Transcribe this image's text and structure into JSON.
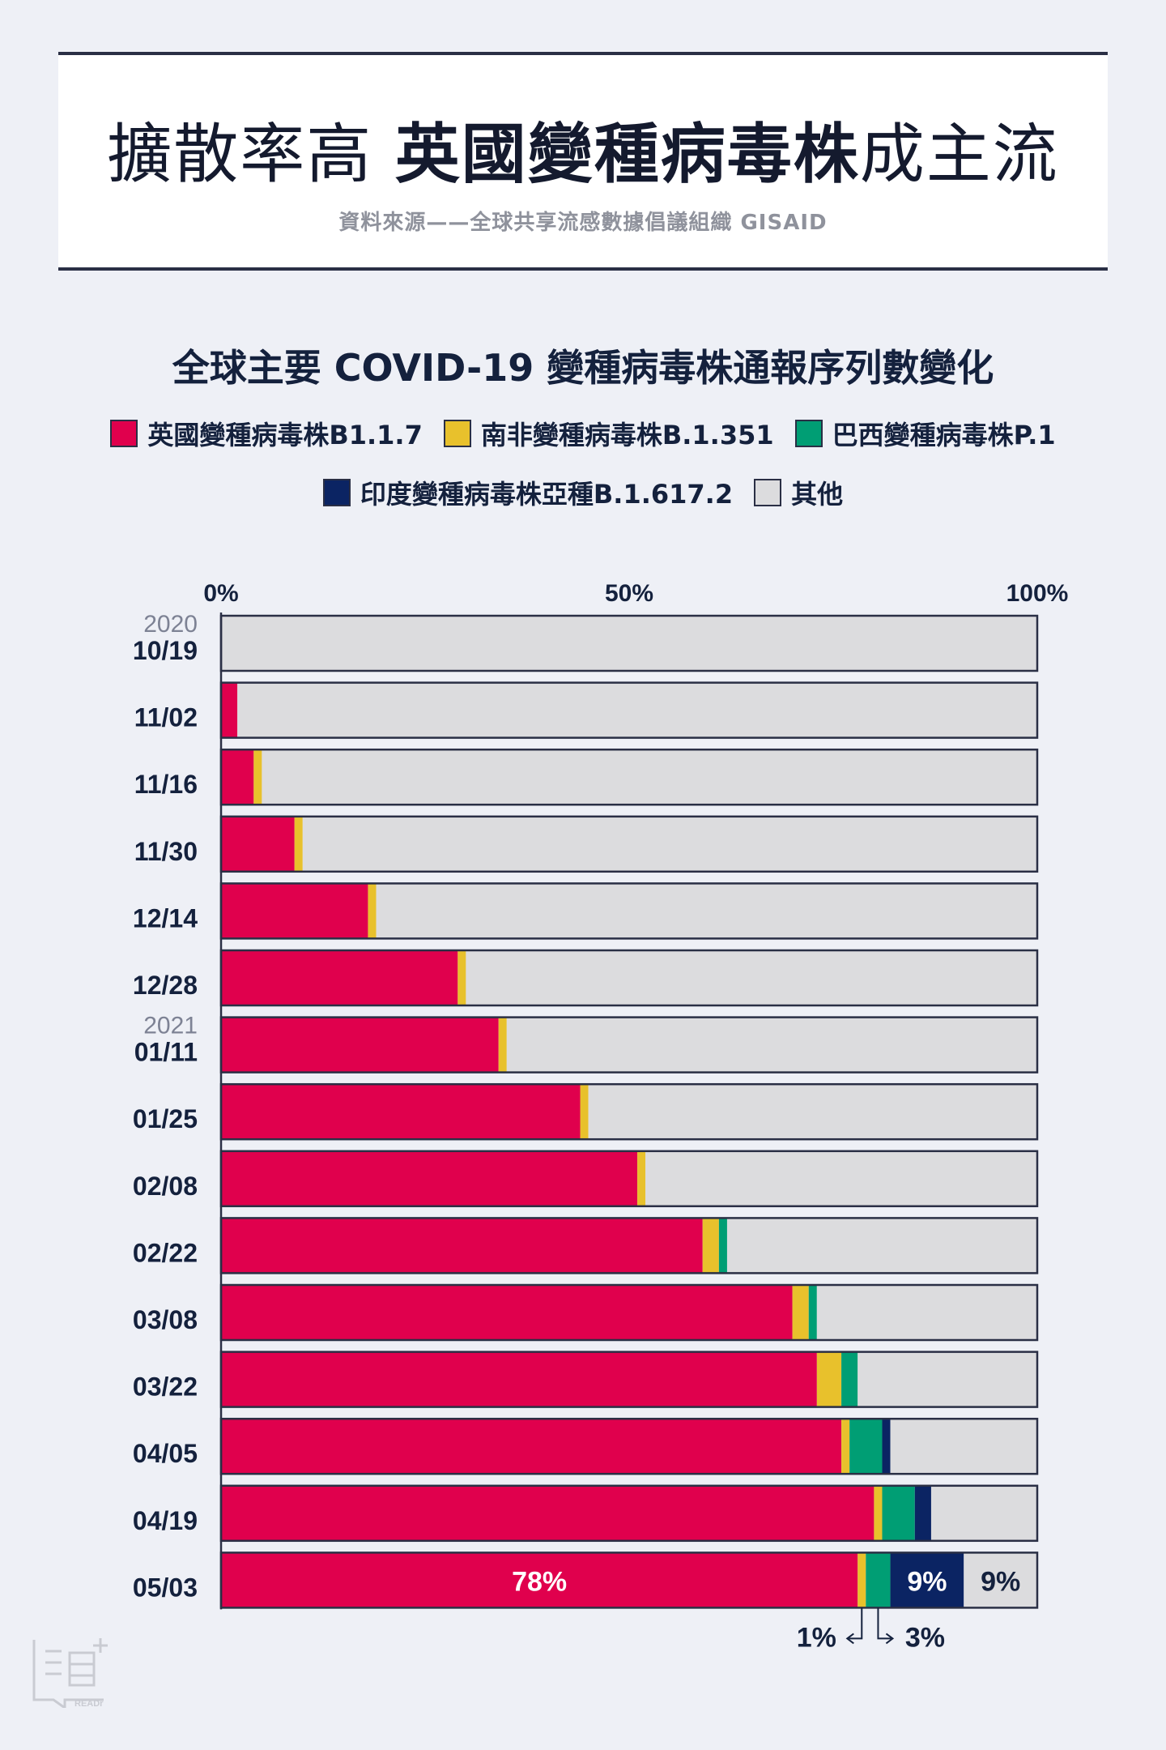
{
  "header": {
    "title_light_1": "擴散率高 ",
    "title_bold": "英國變種病毒株",
    "title_light_2": "成主流",
    "source": "資料來源——全球共享流感數據倡議組織 GISAID"
  },
  "chart_data": {
    "type": "bar",
    "orientation": "horizontal",
    "stacked": true,
    "normalized": true,
    "title": "全球主要 COVID-19 變種病毒株通報序列數變化",
    "xlim": [
      0,
      100
    ],
    "x_ticks": [
      "0%",
      "50%",
      "100%"
    ],
    "legend_position": "top",
    "categories": [
      "10/19",
      "11/02",
      "11/16",
      "11/30",
      "12/14",
      "12/28",
      "01/11",
      "01/25",
      "02/08",
      "02/22",
      "03/08",
      "03/22",
      "04/05",
      "04/19",
      "05/03"
    ],
    "year_labels": {
      "10/19": "2020",
      "01/11": "2021"
    },
    "series": [
      {
        "name": "英國變種病毒株B1.1.7",
        "color": "#e0004d",
        "values": [
          0,
          2,
          4,
          9,
          18,
          29,
          34,
          44,
          51,
          59,
          70,
          73,
          76,
          80,
          78
        ]
      },
      {
        "name": "南非變種病毒株B.1.351",
        "color": "#e8c12c",
        "values": [
          0,
          0,
          1,
          1,
          1,
          1,
          1,
          1,
          1,
          2,
          2,
          3,
          1,
          1,
          1
        ]
      },
      {
        "name": "巴西變種病毒株P.1",
        "color": "#009e74",
        "values": [
          0,
          0,
          0,
          0,
          0,
          0,
          0,
          0,
          0,
          1,
          1,
          2,
          4,
          4,
          3
        ]
      },
      {
        "name": "印度變種病毒株亞種B.1.617.2",
        "color": "#0b2463",
        "values": [
          0,
          0,
          0,
          0,
          0,
          0,
          0,
          0,
          0,
          0,
          0,
          0,
          1,
          2,
          9
        ]
      },
      {
        "name": "其他",
        "color": "#dcdcde",
        "values": [
          100,
          98,
          95,
          90,
          81,
          70,
          65,
          55,
          48,
          38,
          27,
          22,
          18,
          13,
          9
        ]
      }
    ],
    "annotations": {
      "uk_last": "78%",
      "india_last": "9%",
      "other_last": "9%",
      "sa_last": "1%",
      "brazil_last": "3%"
    }
  },
  "logo": {
    "name": "READr"
  }
}
